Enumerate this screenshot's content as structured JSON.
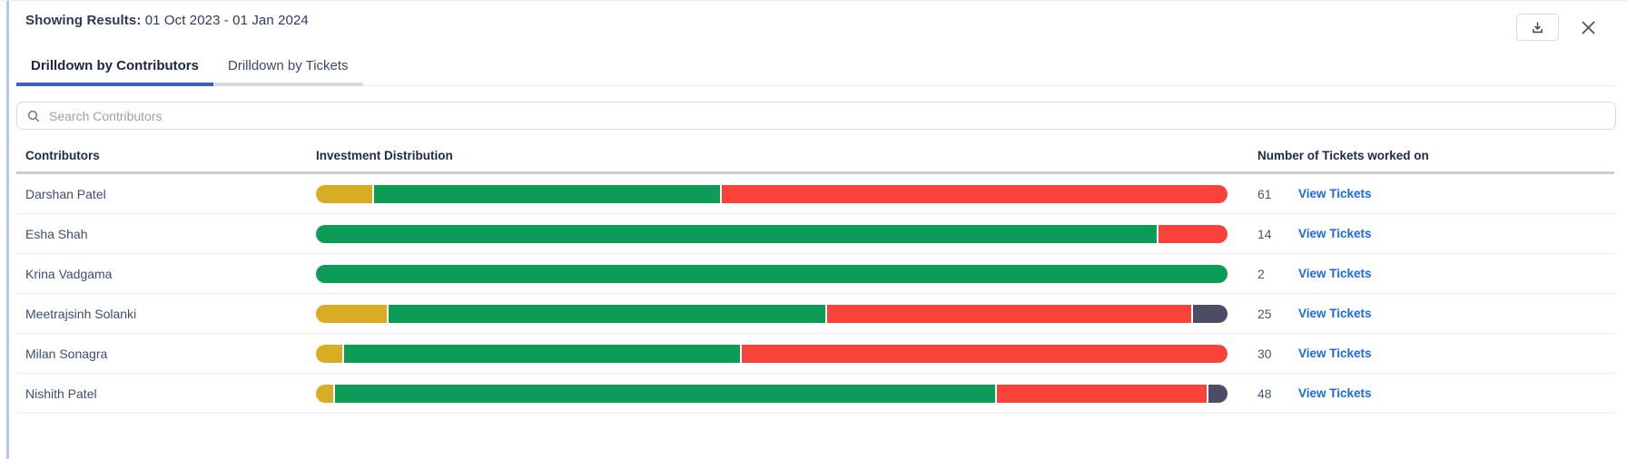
{
  "header": {
    "label": "Showing Results:",
    "range": "01 Oct 2023 - 01 Jan 2024"
  },
  "tabs": [
    {
      "label": "Drilldown by Contributors",
      "active": true
    },
    {
      "label": "Drilldown by Tickets",
      "active": false
    }
  ],
  "search": {
    "placeholder": "Search Contributors"
  },
  "table": {
    "columns": {
      "contributors": "Contributors",
      "distribution": "Investment Distribution",
      "tickets": "Number of Tickets worked on"
    },
    "view_tickets_label": "View Tickets",
    "rows": [
      {
        "name": "Darshan Patel",
        "tickets": "61",
        "segments": [
          {
            "color": "yellow",
            "pct": 6.2
          },
          {
            "color": "green",
            "pct": 38.1
          },
          {
            "color": "red",
            "pct": 55.7
          }
        ]
      },
      {
        "name": "Esha Shah",
        "tickets": "14",
        "segments": [
          {
            "color": "green",
            "pct": 92.4
          },
          {
            "color": "red",
            "pct": 7.6
          }
        ]
      },
      {
        "name": "Krina Vadgama",
        "tickets": "2",
        "segments": [
          {
            "color": "green",
            "pct": 100
          }
        ]
      },
      {
        "name": "Meetrajsinh Solanki",
        "tickets": "25",
        "segments": [
          {
            "color": "yellow",
            "pct": 7.8
          },
          {
            "color": "green",
            "pct": 48.2
          },
          {
            "color": "red",
            "pct": 40.2
          },
          {
            "color": "slate",
            "pct": 3.8
          }
        ]
      },
      {
        "name": "Milan Sonagra",
        "tickets": "30",
        "segments": [
          {
            "color": "yellow",
            "pct": 2.9
          },
          {
            "color": "green",
            "pct": 43.6
          },
          {
            "color": "red",
            "pct": 53.5
          }
        ]
      },
      {
        "name": "Nishith Patel",
        "tickets": "48",
        "segments": [
          {
            "color": "yellow",
            "pct": 1.9
          },
          {
            "color": "green",
            "pct": 72.8
          },
          {
            "color": "red",
            "pct": 23.2
          },
          {
            "color": "slate",
            "pct": 2.1
          }
        ]
      }
    ]
  },
  "colors": {
    "yellow": "#D8AD24",
    "green": "#0C9C57",
    "red": "#F9423A",
    "slate": "#4C4C63",
    "link_blue": "#1B6BE0",
    "active_tab_underline": "#3D59D6",
    "left_accent": "#B9C5F1"
  }
}
